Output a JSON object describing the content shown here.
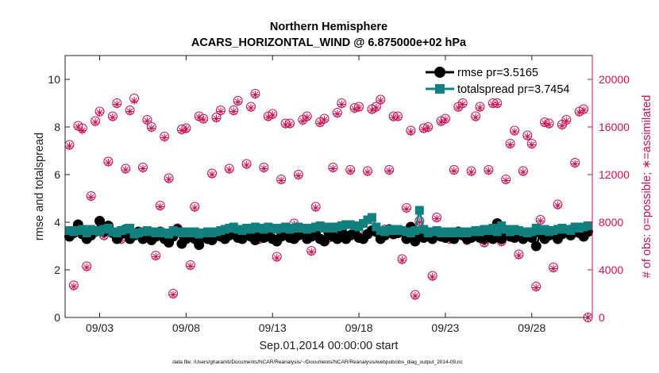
{
  "chart_data": {
    "type": "line",
    "title": "Northern Hemisphere",
    "subtitle": "ACARS_HORIZONTAL_WIND @ 6.875000e+02 hPa",
    "xlabel": "Sep.01,2014 00:00:00 start",
    "ylabel": "rmse and totalspread",
    "ylabel_right": "# of obs: o=possible; ∗=assimilated",
    "footnote": "data file: /Users/gharamti/Documents/NCAR/Reanalysis/~/Documents/NCAR/Reanalysis/webpub/obs_diag_output_2014-09.nc",
    "xlim": [
      1,
      31.5
    ],
    "ylim": [
      0,
      11
    ],
    "ylim_right": [
      0,
      22000
    ],
    "x_ticks": [
      3,
      8,
      13,
      18,
      23,
      28
    ],
    "x_ticklabels": [
      "09/03",
      "09/08",
      "09/13",
      "09/18",
      "09/23",
      "09/28"
    ],
    "y_ticks": [
      0,
      2,
      4,
      6,
      8,
      10
    ],
    "y_ticklabels": [
      "0",
      "2",
      "4",
      "6",
      "8",
      "10"
    ],
    "y2_ticks": [
      0,
      4000,
      8000,
      12000,
      16000,
      20000
    ],
    "y2_ticklabels": [
      "0",
      "4000",
      "8000",
      "12000",
      "16000",
      "20000"
    ],
    "legend": [
      {
        "name": "rmse pr=3.5165",
        "color": "#000000",
        "marker": "circle"
      },
      {
        "name": "totalspread pr=3.7454",
        "color": "#11807f",
        "marker": "square"
      }
    ],
    "legend_position": "top-right",
    "colors": {
      "rmse": "#000000",
      "spread": "#11807f",
      "obs": "#cc1155",
      "axis": "#222222"
    },
    "x": [
      1.25,
      1.5,
      1.75,
      2.0,
      2.25,
      2.5,
      2.75,
      3.0,
      3.25,
      3.5,
      3.75,
      4.0,
      4.25,
      4.5,
      4.75,
      5.0,
      5.25,
      5.5,
      5.75,
      6.0,
      6.25,
      6.5,
      6.75,
      7.0,
      7.25,
      7.5,
      7.75,
      8.0,
      8.25,
      8.5,
      8.75,
      9.0,
      9.25,
      9.5,
      9.75,
      10.0,
      10.25,
      10.5,
      10.75,
      11.0,
      11.25,
      11.5,
      11.75,
      12.0,
      12.25,
      12.5,
      12.75,
      13.0,
      13.25,
      13.5,
      13.75,
      14.0,
      14.25,
      14.5,
      14.75,
      15.0,
      15.25,
      15.5,
      15.75,
      16.0,
      16.25,
      16.5,
      16.75,
      17.0,
      17.25,
      17.5,
      17.75,
      18.0,
      18.25,
      18.5,
      18.75,
      19.0,
      19.25,
      19.5,
      19.75,
      20.0,
      20.25,
      20.5,
      20.75,
      21.0,
      21.25,
      21.5,
      21.75,
      22.0,
      22.25,
      22.5,
      22.75,
      23.0,
      23.25,
      23.5,
      23.75,
      24.0,
      24.25,
      24.5,
      24.75,
      25.0,
      25.25,
      25.5,
      25.75,
      26.0,
      26.25,
      26.5,
      26.75,
      27.0,
      27.25,
      27.5,
      27.75,
      28.0,
      28.25,
      28.5,
      28.75,
      29.0,
      29.25,
      29.5,
      29.75,
      30.0,
      30.25,
      30.5,
      30.75,
      31.0,
      31.25
    ],
    "series": [
      {
        "name": "rmse",
        "values": [
          3.4,
          3.55,
          3.9,
          3.5,
          3.3,
          3.45,
          3.6,
          4.05,
          3.6,
          3.85,
          3.55,
          3.3,
          3.5,
          3.7,
          3.3,
          3.45,
          3.6,
          3.3,
          3.55,
          3.25,
          3.4,
          3.6,
          3.3,
          3.15,
          3.4,
          3.7,
          3.1,
          3.3,
          3.5,
          3.3,
          3.05,
          3.4,
          3.3,
          3.25,
          3.5,
          3.4,
          3.3,
          3.45,
          3.6,
          3.35,
          3.3,
          3.6,
          3.4,
          3.25,
          3.5,
          3.35,
          3.6,
          3.3,
          3.2,
          3.4,
          3.6,
          3.35,
          3.3,
          3.45,
          3.55,
          3.3,
          3.4,
          3.6,
          3.3,
          3.2,
          3.55,
          3.4,
          3.3,
          3.65,
          3.3,
          3.45,
          3.6,
          3.35,
          3.3,
          3.5,
          3.65,
          3.6,
          3.3,
          3.45,
          3.7,
          3.5,
          3.55,
          3.6,
          3.3,
          3.8,
          3.2,
          3.45,
          3.35,
          3.55,
          3.3,
          3.6,
          3.4,
          3.35,
          3.5,
          3.3,
          3.6,
          3.45,
          3.3,
          3.35,
          3.5,
          3.35,
          3.3,
          3.6,
          3.3,
          3.95,
          3.3,
          3.55,
          3.4,
          3.35,
          3.6,
          3.3,
          3.55,
          3.35,
          3.0,
          3.55,
          3.3,
          3.45,
          3.6,
          3.3,
          3.5,
          3.65,
          3.45,
          3.7,
          3.55,
          3.4,
          3.6
        ]
      },
      {
        "name": "totalspread",
        "values": [
          3.65,
          3.6,
          3.65,
          3.7,
          3.55,
          3.7,
          3.65,
          3.6,
          3.7,
          3.75,
          3.6,
          3.55,
          3.65,
          3.7,
          3.75,
          3.5,
          3.55,
          3.6,
          3.65,
          3.6,
          3.55,
          3.6,
          3.55,
          3.5,
          3.65,
          3.6,
          3.55,
          3.6,
          3.55,
          3.6,
          3.5,
          3.55,
          3.6,
          3.55,
          3.6,
          3.65,
          3.7,
          3.75,
          3.8,
          3.7,
          3.65,
          3.75,
          3.7,
          3.8,
          3.75,
          3.7,
          3.8,
          3.75,
          3.7,
          3.75,
          3.8,
          3.7,
          3.75,
          3.8,
          3.75,
          3.7,
          3.75,
          3.8,
          3.85,
          3.75,
          3.8,
          3.75,
          3.8,
          3.85,
          3.9,
          3.9,
          3.85,
          3.8,
          3.95,
          4.1,
          4.2,
          3.8,
          3.65,
          3.6,
          3.7,
          3.65,
          3.7,
          3.65,
          3.6,
          3.55,
          3.65,
          4.5,
          3.7,
          3.55,
          3.6,
          3.65,
          3.55,
          3.6,
          3.55,
          3.6,
          3.55,
          3.6,
          3.55,
          3.6,
          3.65,
          3.6,
          3.7,
          3.65,
          3.75,
          3.6,
          3.85,
          3.7,
          3.6,
          3.7,
          3.65,
          3.6,
          3.55,
          3.6,
          3.75,
          3.65,
          3.7,
          3.6,
          3.65,
          3.7,
          3.75,
          3.7,
          3.65,
          3.8,
          3.75,
          3.8,
          3.85
        ]
      },
      {
        "name": "obs possible",
        "axis": "right",
        "values": [
          14500,
          2700,
          16100,
          15900,
          4300,
          10200,
          16500,
          17300,
          6900,
          13100,
          16900,
          18000,
          6600,
          12500,
          17400,
          18400,
          7000,
          12600,
          16600,
          16000,
          5200,
          9400,
          15200,
          11700,
          2000,
          7500,
          15800,
          15900,
          4400,
          9300,
          16900,
          16700,
          6600,
          12100,
          16800,
          17400,
          6600,
          12500,
          17400,
          18200,
          6600,
          12900,
          17700,
          18800,
          6600,
          12600,
          16900,
          17100,
          5100,
          11600,
          16300,
          16300,
          7900,
          12000,
          16600,
          16900,
          5600,
          9300,
          16400,
          16700,
          6700,
          12600,
          17200,
          18000,
          6800,
          12400,
          17600,
          17700,
          6800,
          12300,
          17500,
          17700,
          18300,
          7400,
          12400,
          16900,
          16900,
          4900,
          9200,
          15700,
          1900,
          8100,
          15900,
          16000,
          3500,
          8400,
          16500,
          16700,
          6600,
          12400,
          17700,
          18000,
          6500,
          12300,
          16900,
          17700,
          6300,
          12400,
          18000,
          18000,
          6400,
          11600,
          14600,
          15700,
          5300,
          12300,
          15300,
          14600,
          2600,
          8200,
          16400,
          16300,
          4200,
          9500,
          16200,
          16600,
          7400,
          13000,
          17300,
          17500,
          0
        ]
      },
      {
        "name": "obs assimilated",
        "axis": "right",
        "values": [
          14400,
          2600,
          16000,
          15700,
          4200,
          10100,
          16400,
          17200,
          6800,
          13000,
          16800,
          17900,
          6500,
          12400,
          17300,
          18200,
          6900,
          12500,
          16500,
          15900,
          5100,
          9300,
          15100,
          11600,
          1900,
          7400,
          15700,
          15800,
          4300,
          9200,
          16800,
          16600,
          6500,
          12000,
          16700,
          17300,
          6500,
          12400,
          17300,
          18100,
          6500,
          12800,
          17600,
          18700,
          6500,
          12500,
          16800,
          17000,
          5000,
          11500,
          16200,
          16200,
          7800,
          11900,
          16500,
          16800,
          5500,
          9200,
          16300,
          16600,
          6600,
          12500,
          17100,
          17900,
          6700,
          12300,
          17500,
          17600,
          6700,
          12200,
          17400,
          17600,
          18200,
          7300,
          12300,
          16800,
          16800,
          4800,
          9100,
          15600,
          1800,
          8000,
          15800,
          15900,
          3400,
          8300,
          16400,
          16600,
          6500,
          12300,
          17600,
          17900,
          6400,
          12200,
          16800,
          17600,
          6200,
          12300,
          17900,
          17900,
          6300,
          11500,
          14500,
          15600,
          5200,
          12200,
          15200,
          14500,
          2500,
          8100,
          16300,
          16200,
          4100,
          9400,
          16100,
          16500,
          7300,
          12900,
          17200,
          17400,
          0
        ]
      }
    ]
  }
}
